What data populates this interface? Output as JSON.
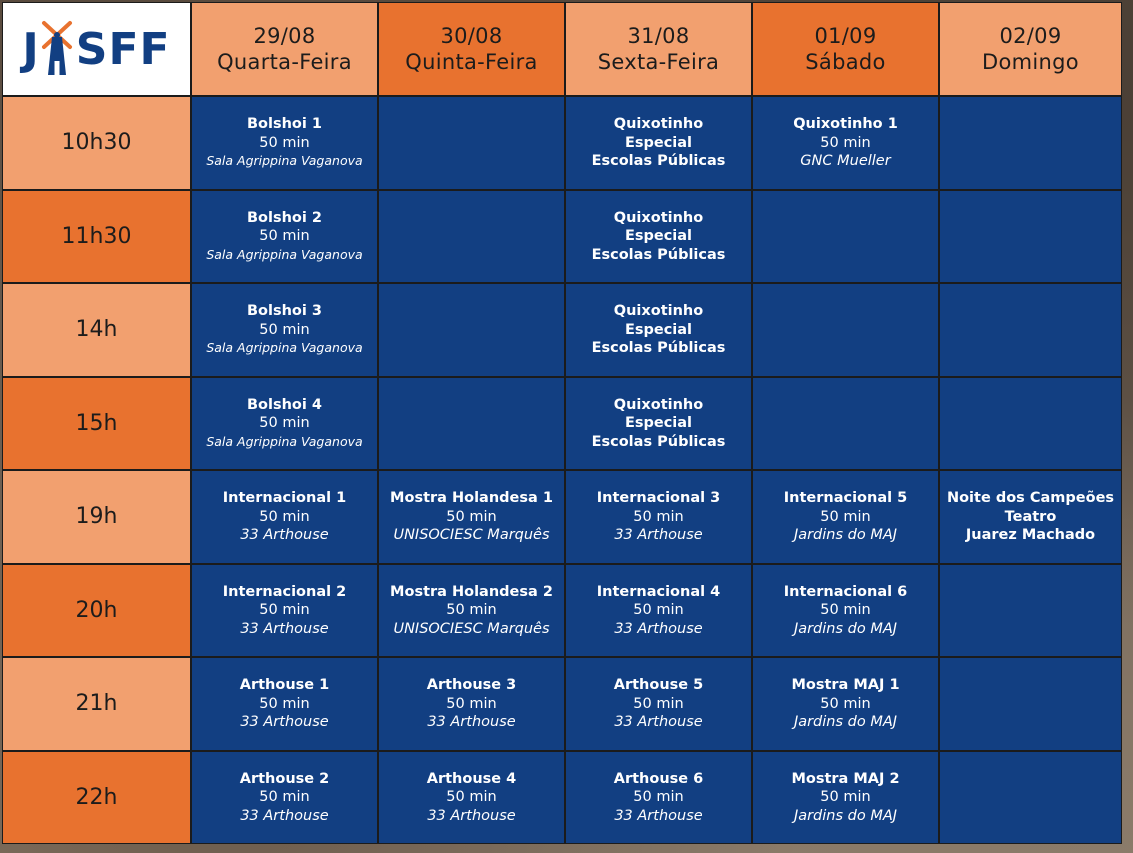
{
  "logo": {
    "text_j": "J",
    "text_rest": "SFF"
  },
  "days": [
    {
      "date": "29/08",
      "name": "Quarta-Feira"
    },
    {
      "date": "30/08",
      "name": "Quinta-Feira"
    },
    {
      "date": "31/08",
      "name": "Sexta-Feira"
    },
    {
      "date": "01/09",
      "name": "Sábado"
    },
    {
      "date": "02/09",
      "name": "Domingo"
    }
  ],
  "rows": [
    {
      "time": "10h30",
      "cells": [
        {
          "lines": [
            "Bolshoi 1"
          ],
          "dur": "50 min",
          "venue": "Sala Agrippina Vaganova",
          "venue_small": true
        },
        null,
        {
          "lines": [
            "Quixotinho",
            "Especial",
            "Escolas Públicas"
          ]
        },
        {
          "lines": [
            "Quixotinho 1"
          ],
          "dur": "50 min",
          "venue": "GNC Mueller"
        },
        null
      ]
    },
    {
      "time": "11h30",
      "cells": [
        {
          "lines": [
            "Bolshoi 2"
          ],
          "dur": "50 min",
          "venue": "Sala Agrippina Vaganova",
          "venue_small": true
        },
        null,
        {
          "lines": [
            "Quixotinho",
            "Especial",
            "Escolas Públicas"
          ]
        },
        null,
        null
      ]
    },
    {
      "time": "14h",
      "cells": [
        {
          "lines": [
            "Bolshoi 3"
          ],
          "dur": "50 min",
          "venue": "Sala Agrippina Vaganova",
          "venue_small": true
        },
        null,
        {
          "lines": [
            "Quixotinho",
            "Especial",
            "Escolas Públicas"
          ]
        },
        null,
        null
      ]
    },
    {
      "time": "15h",
      "cells": [
        {
          "lines": [
            "Bolshoi 4"
          ],
          "dur": "50 min",
          "venue": "Sala Agrippina Vaganova",
          "venue_small": true
        },
        null,
        {
          "lines": [
            "Quixotinho",
            "Especial",
            "Escolas Públicas"
          ]
        },
        null,
        null
      ]
    },
    {
      "time": "19h",
      "cells": [
        {
          "lines": [
            "Internacional 1"
          ],
          "dur": "50 min",
          "venue": "33 Arthouse"
        },
        {
          "lines": [
            "Mostra Holandesa 1"
          ],
          "dur": "50 min",
          "venue": "UNISOCIESC Marquês"
        },
        {
          "lines": [
            "Internacional 3"
          ],
          "dur": "50 min",
          "venue": "33 Arthouse"
        },
        {
          "lines": [
            "Internacional 5"
          ],
          "dur": "50 min",
          "venue": "Jardins do MAJ"
        },
        {
          "lines": [
            "Noite dos Campeões",
            "Teatro",
            "Juarez Machado"
          ]
        }
      ]
    },
    {
      "time": "20h",
      "cells": [
        {
          "lines": [
            "Internacional 2"
          ],
          "dur": "50 min",
          "venue": "33 Arthouse"
        },
        {
          "lines": [
            "Mostra Holandesa 2"
          ],
          "dur": "50 min",
          "venue": "UNISOCIESC Marquês"
        },
        {
          "lines": [
            "Internacional 4"
          ],
          "dur": "50 min",
          "venue": "33 Arthouse"
        },
        {
          "lines": [
            "Internacional 6"
          ],
          "dur": "50 min",
          "venue": "Jardins do MAJ"
        },
        null
      ]
    },
    {
      "time": "21h",
      "cells": [
        {
          "lines": [
            "Arthouse 1"
          ],
          "dur": "50 min",
          "venue": "33 Arthouse"
        },
        {
          "lines": [
            "Arthouse 3"
          ],
          "dur": "50 min",
          "venue": "33 Arthouse"
        },
        {
          "lines": [
            "Arthouse 5"
          ],
          "dur": "50 min",
          "venue": "33 Arthouse"
        },
        {
          "lines": [
            "Mostra MAJ 1"
          ],
          "dur": "50 min",
          "venue": "Jardins do MAJ"
        },
        null
      ]
    },
    {
      "time": "22h",
      "cells": [
        {
          "lines": [
            "Arthouse 2"
          ],
          "dur": "50 min",
          "venue": "33 Arthouse"
        },
        {
          "lines": [
            "Arthouse 4"
          ],
          "dur": "50 min",
          "venue": "33 Arthouse"
        },
        {
          "lines": [
            "Arthouse 6"
          ],
          "dur": "50 min",
          "venue": "33 Arthouse"
        },
        {
          "lines": [
            "Mostra MAJ 2"
          ],
          "dur": "50 min",
          "venue": "Jardins do MAJ"
        },
        null
      ]
    }
  ],
  "colors": {
    "slot_bg": "#123f82",
    "orange_light": "#f2a06f",
    "orange_dark": "#e8722f",
    "logo_blue": "#123f82",
    "logo_orange": "#e8722f"
  }
}
